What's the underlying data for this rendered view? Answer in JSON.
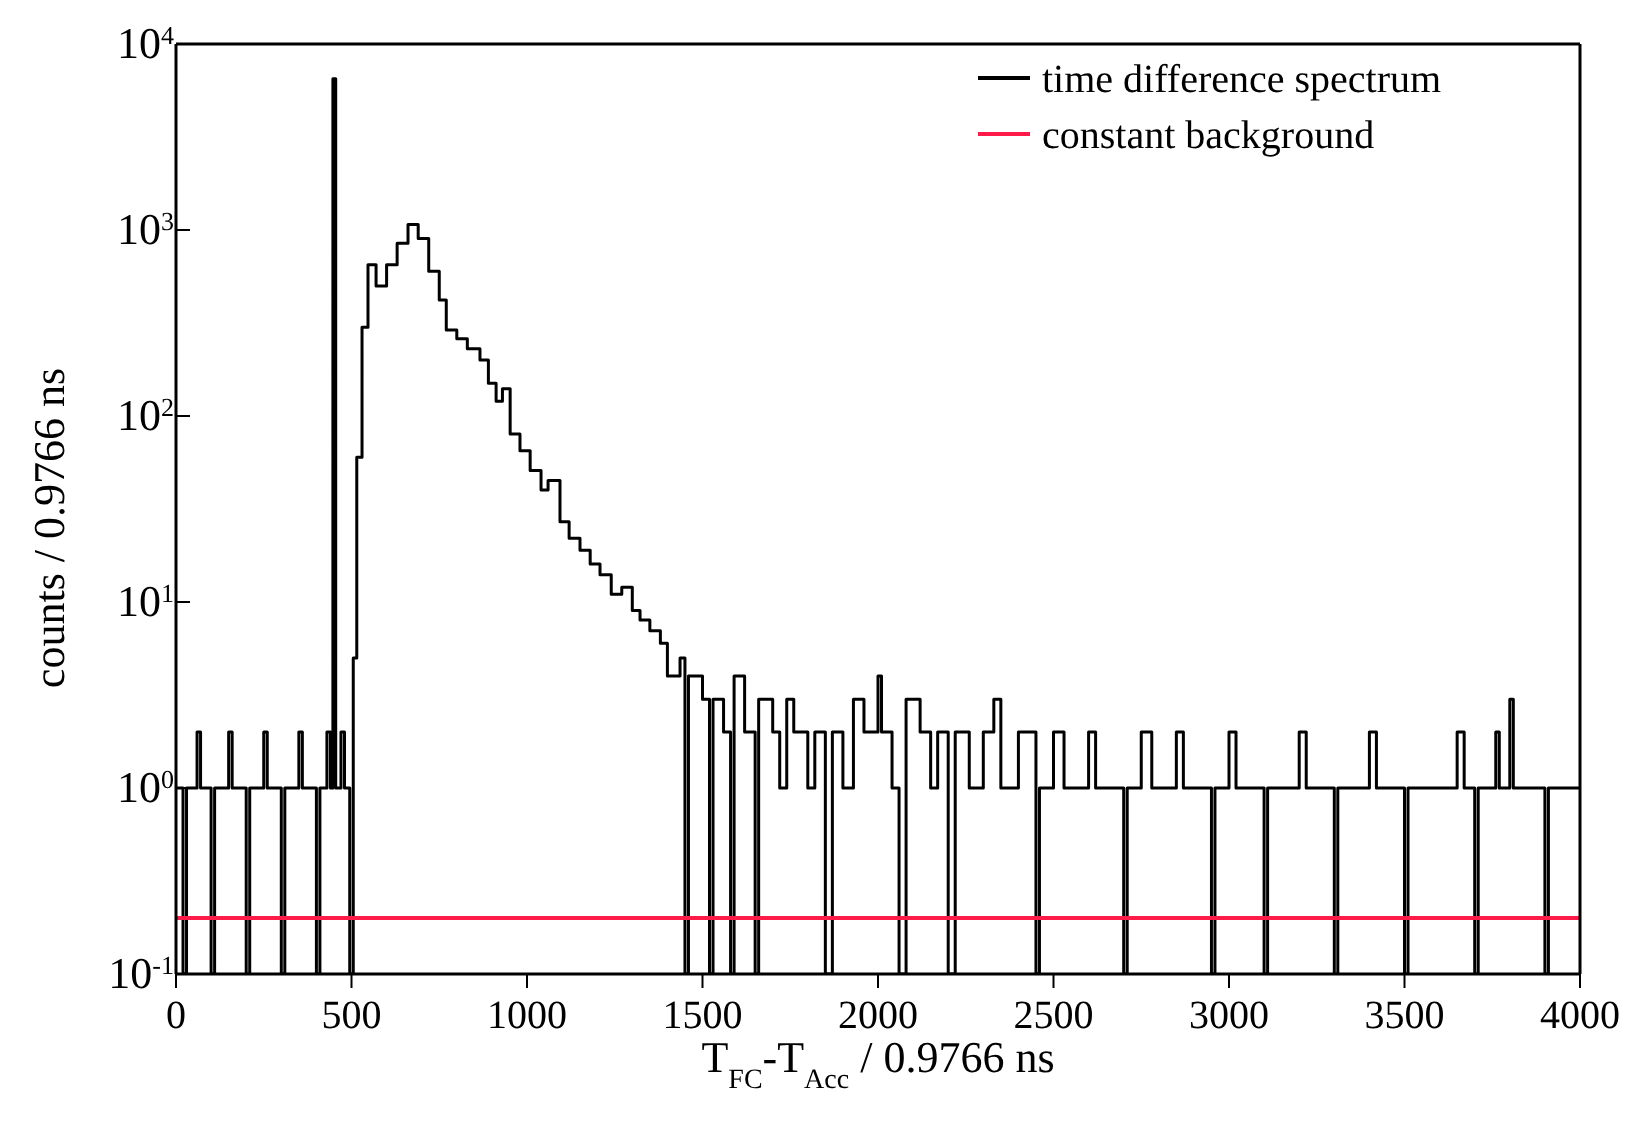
{
  "chart_data": {
    "type": "step",
    "xlabel": "T$_{FC}$-T$_{Acc}$ / 0.9766 ns",
    "ylabel": "counts / 0.9766 ns",
    "log": "y",
    "legend": "top right",
    "xlim": [
      0,
      4000
    ],
    "xticks": [
      0,
      500,
      1000,
      1500,
      2000,
      2500,
      3000,
      3500,
      4000
    ],
    "ylim": [
      0.1,
      10000
    ],
    "yticks": [
      {
        "value": 0.1,
        "label": "10$^{-1}$"
      },
      {
        "value": 1,
        "label": "10$^{0}$"
      },
      {
        "value": 10,
        "label": "10$^{1}$"
      },
      {
        "value": 100,
        "label": "10$^{2}$"
      },
      {
        "value": 1000,
        "label": "10$^{3}$"
      },
      {
        "value": 10000,
        "label": "10$^{4}$"
      }
    ],
    "series": [
      {
        "name": "time difference spectrum",
        "color": "#000000",
        "x": [
          0,
          20,
          30,
          60,
          70,
          100,
          110,
          150,
          160,
          200,
          210,
          250,
          260,
          300,
          310,
          350,
          360,
          400,
          410,
          430,
          440,
          447,
          455,
          470,
          480,
          495,
          505,
          515,
          530,
          547,
          570,
          600,
          630,
          661,
          690,
          720,
          750,
          770,
          800,
          830,
          866,
          890,
          912,
          930,
          952,
          980,
          1009,
          1040,
          1060,
          1094,
          1120,
          1151,
          1180,
          1208,
          1240,
          1270,
          1300,
          1322,
          1350,
          1380,
          1400,
          1436,
          1450,
          1460,
          1500,
          1520,
          1530,
          1560,
          1580,
          1590,
          1620,
          1650,
          1660,
          1700,
          1720,
          1740,
          1760,
          1800,
          1820,
          1850,
          1870,
          1900,
          1930,
          1960,
          2000,
          2010,
          2040,
          2060,
          2080,
          2120,
          2150,
          2170,
          2200,
          2220,
          2260,
          2300,
          2330,
          2350,
          2400,
          2450,
          2460,
          2500,
          2530,
          2600,
          2620,
          2700,
          2710,
          2750,
          2780,
          2850,
          2870,
          2950,
          2960,
          3000,
          3020,
          3100,
          3110,
          3200,
          3220,
          3300,
          3310,
          3400,
          3420,
          3500,
          3510,
          3650,
          3670,
          3700,
          3710,
          3760,
          3770,
          3800,
          3810,
          3900,
          3910,
          4000
        ],
        "values": [
          1,
          0.1,
          1,
          2,
          1,
          0.1,
          1,
          2,
          1,
          0.1,
          1,
          2,
          1,
          0.1,
          1,
          2,
          1,
          0.1,
          1,
          2,
          1,
          6500,
          1,
          2,
          1,
          0.1,
          5,
          60,
          300,
          650,
          500,
          650,
          850,
          1070,
          900,
          600,
          420,
          290,
          260,
          230,
          200,
          150,
          120,
          140,
          80,
          65,
          51,
          40,
          45,
          27,
          22,
          19,
          16,
          14,
          11,
          12,
          9,
          8,
          7,
          6,
          4,
          5,
          0.1,
          4,
          3,
          0.1,
          3,
          2,
          0.1,
          4,
          2,
          0.1,
          3,
          2,
          1,
          3,
          2,
          1,
          2,
          0.1,
          2,
          1,
          3,
          2,
          4,
          2,
          1,
          0.1,
          3,
          2,
          1,
          2,
          0.1,
          2,
          1,
          2,
          3,
          1,
          2,
          0.1,
          1,
          2,
          1,
          2,
          1,
          0.1,
          1,
          2,
          1,
          2,
          1,
          0.1,
          1,
          2,
          1,
          0.1,
          1,
          2,
          1,
          0.1,
          1,
          2,
          1,
          0.1,
          1,
          2,
          1,
          0.1,
          1,
          2,
          1,
          3,
          1,
          0.1,
          1,
          1
        ]
      },
      {
        "name": "constant background",
        "color": "#ff1a4a",
        "type": "line",
        "x": [
          0,
          4000
        ],
        "values": [
          0.2,
          0.2
        ]
      }
    ]
  }
}
